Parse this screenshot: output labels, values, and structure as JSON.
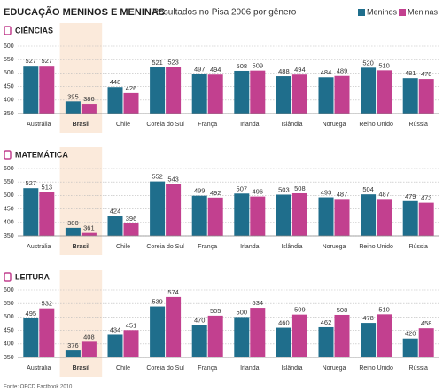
{
  "header": {
    "title": "EDUCAÇÃO MENINOS E MENINAS",
    "subtitle": "Resultados no Pisa 2006 por gênero"
  },
  "source": "Fonte: OECD Factbook 2010",
  "chart_data": [
    {
      "type": "bar",
      "title": "CIÊNCIAS",
      "categories": [
        "Austrália",
        "Brasil",
        "Chile",
        "Coreia do Sul",
        "França",
        "Irlanda",
        "Islândia",
        "Noruega",
        "Reino Unido",
        "Rússia"
      ],
      "series": [
        {
          "name": "Meninos",
          "color": "#1f6e8c",
          "values": [
            527,
            395,
            448,
            521,
            497,
            508,
            488,
            484,
            520,
            481
          ]
        },
        {
          "name": "Meninas",
          "color": "#c2408f",
          "values": [
            527,
            386,
            426,
            523,
            494,
            509,
            494,
            489,
            510,
            478
          ]
        }
      ],
      "ylim": [
        350,
        600
      ],
      "yticks": [
        350,
        400,
        450,
        500,
        550,
        600
      ],
      "grid": true
    },
    {
      "type": "bar",
      "title": "MATEMÁTICA",
      "categories": [
        "Austrália",
        "Brasil",
        "Chile",
        "Coreia do Sul",
        "França",
        "Irlanda",
        "Islândia",
        "Noruega",
        "Reino Unido",
        "Rússia"
      ],
      "series": [
        {
          "name": "Meninos",
          "color": "#1f6e8c",
          "values": [
            527,
            380,
            424,
            552,
            499,
            507,
            503,
            493,
            504,
            479
          ]
        },
        {
          "name": "Meninas",
          "color": "#c2408f",
          "values": [
            513,
            361,
            396,
            543,
            492,
            496,
            508,
            487,
            487,
            473
          ]
        }
      ],
      "ylim": [
        350,
        600
      ],
      "yticks": [
        350,
        400,
        450,
        500,
        550,
        600
      ],
      "grid": true
    },
    {
      "type": "bar",
      "title": "LEITURA",
      "categories": [
        "Austrália",
        "Brasil",
        "Chile",
        "Coreia do Sul",
        "França",
        "Irlanda",
        "Islândia",
        "Noruega",
        "Reino Unido",
        "Rússia"
      ],
      "series": [
        {
          "name": "Meninos",
          "color": "#1f6e8c",
          "values": [
            495,
            376,
            434,
            539,
            470,
            500,
            460,
            462,
            478,
            420
          ]
        },
        {
          "name": "Meninas",
          "color": "#c2408f",
          "values": [
            532,
            408,
            451,
            574,
            505,
            534,
            509,
            508,
            510,
            458
          ]
        }
      ],
      "ylim": [
        350,
        600
      ],
      "yticks": [
        350,
        400,
        450,
        500,
        550,
        600
      ],
      "grid": true
    }
  ]
}
